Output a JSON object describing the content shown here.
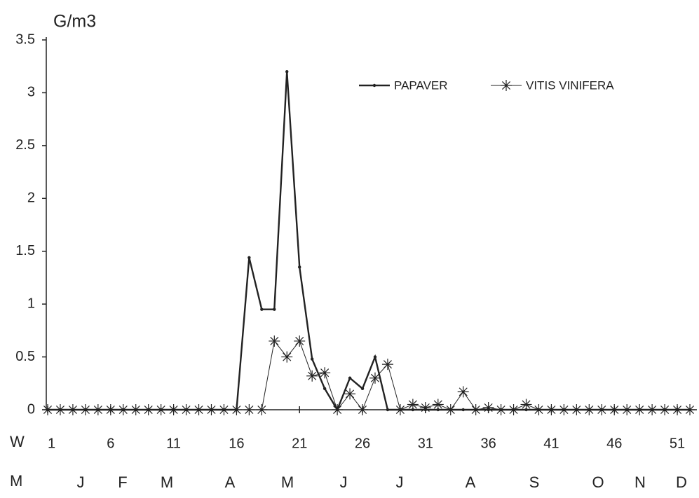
{
  "chart_data": {
    "type": "line",
    "y_label": "G/m3",
    "x_row_label": "W",
    "month_row_label": "M",
    "months": [
      "J",
      "F",
      "M",
      "A",
      "M",
      "J",
      "J",
      "A",
      "S",
      "O",
      "N",
      "D"
    ],
    "x": [
      1,
      2,
      3,
      4,
      5,
      6,
      7,
      8,
      9,
      10,
      11,
      12,
      13,
      14,
      15,
      16,
      17,
      18,
      19,
      20,
      21,
      22,
      23,
      24,
      25,
      26,
      27,
      28,
      29,
      30,
      31,
      32,
      33,
      34,
      35,
      36,
      37,
      38,
      39,
      40,
      41,
      42,
      43,
      44,
      45,
      46,
      47,
      48,
      49,
      50,
      51,
      52
    ],
    "xlim": [
      1,
      52
    ],
    "xticks": [
      1,
      6,
      11,
      16,
      21,
      26,
      31,
      36,
      41,
      46,
      51
    ],
    "ylim": [
      0,
      3.5
    ],
    "yticks": [
      0,
      0.5,
      1,
      1.5,
      2,
      2.5,
      3,
      3.5
    ],
    "series": [
      {
        "name": "PAPAVER",
        "color": "#222222",
        "marker": "dot",
        "values": [
          0,
          0,
          0,
          0,
          0,
          0,
          0,
          0,
          0,
          0,
          0,
          0,
          0,
          0,
          0,
          0,
          1.44,
          0.95,
          0.95,
          3.2,
          1.35,
          0.48,
          0.2,
          0,
          0.3,
          0.2,
          0.5,
          0,
          0,
          0,
          0,
          0,
          0,
          0,
          0,
          0,
          0,
          0,
          0,
          0,
          0,
          0,
          0,
          0,
          0,
          0,
          0,
          0,
          0,
          0,
          0,
          0
        ]
      },
      {
        "name": "VITIS VINIFERA",
        "color": "#222222",
        "marker": "star",
        "values": [
          0,
          0,
          0,
          0,
          0,
          0,
          0,
          0,
          0,
          0,
          0,
          0,
          0,
          0,
          0,
          0,
          0,
          0,
          0.65,
          0.5,
          0.65,
          0.32,
          0.35,
          0,
          0.15,
          0,
          0.3,
          0.43,
          0,
          0.05,
          0.02,
          0.05,
          0,
          0.17,
          0,
          0.02,
          0,
          0,
          0.05,
          0,
          0,
          0,
          0,
          0,
          0,
          0,
          0,
          0,
          0,
          0,
          0,
          0
        ]
      }
    ]
  }
}
